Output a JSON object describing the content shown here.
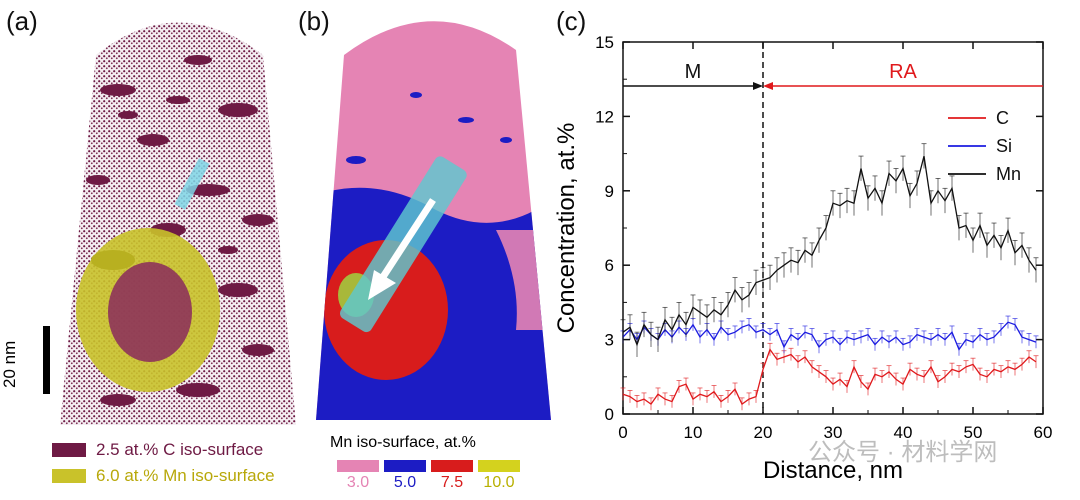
{
  "panels": {
    "a": {
      "label": "(a)"
    },
    "b": {
      "label": "(b)"
    },
    "c": {
      "label": "(c)"
    }
  },
  "scale_bar": {
    "label": "20 nm"
  },
  "legend_a": {
    "items": [
      {
        "text": "2.5 at.% C iso-surface",
        "color": "#6e1a44"
      },
      {
        "text": "6.0 at.% Mn iso-surface",
        "color": "#c9c22a"
      }
    ]
  },
  "legend_b": {
    "title": "Mn iso-surface, at.%",
    "items": [
      {
        "value": "3.0",
        "color": "#e584b4"
      },
      {
        "value": "5.0",
        "color": "#1c1cc4"
      },
      {
        "value": "7.5",
        "color": "#d81c1c"
      },
      {
        "value": "10.0",
        "color": "#d4d21e"
      }
    ]
  },
  "watermark": "公众号 · 材料学网",
  "chart_data": {
    "type": "line",
    "xlabel": "Distance, nm",
    "ylabel": "Concentration, at.%",
    "xlim": [
      0,
      60
    ],
    "ylim": [
      0,
      15
    ],
    "xticks": [
      0,
      10,
      20,
      30,
      40,
      50,
      60
    ],
    "yticks": [
      0,
      3,
      6,
      9,
      12,
      15
    ],
    "legend_position": "top-right",
    "interface_x": 20,
    "regions": [
      {
        "label": "M",
        "color": "#111111",
        "x_range": [
          0,
          20
        ]
      },
      {
        "label": "RA",
        "color": "#e0191c",
        "x_range": [
          20,
          60
        ]
      }
    ],
    "x": [
      0,
      1,
      2,
      3,
      4,
      5,
      6,
      7,
      8,
      9,
      10,
      11,
      12,
      13,
      14,
      15,
      16,
      17,
      18,
      19,
      20,
      21,
      22,
      23,
      24,
      25,
      26,
      27,
      28,
      29,
      30,
      31,
      32,
      33,
      34,
      35,
      36,
      37,
      38,
      39,
      40,
      41,
      42,
      43,
      44,
      45,
      46,
      47,
      48,
      49,
      50,
      51,
      52,
      53,
      54,
      55,
      56,
      57,
      58,
      59
    ],
    "series": [
      {
        "name": "C",
        "color": "#e0191c",
        "values": [
          0.8,
          0.7,
          0.5,
          0.6,
          0.4,
          0.8,
          0.6,
          0.5,
          1.1,
          1.2,
          0.6,
          0.8,
          0.7,
          0.9,
          0.5,
          0.7,
          1.0,
          0.4,
          0.6,
          0.7,
          1.8,
          2.6,
          2.2,
          2.3,
          2.4,
          2.1,
          2.3,
          1.9,
          1.7,
          1.5,
          1.2,
          1.4,
          1.1,
          1.9,
          1.3,
          1.0,
          1.6,
          1.5,
          1.7,
          1.4,
          1.2,
          1.8,
          1.6,
          1.5,
          1.9,
          1.3,
          1.5,
          1.8,
          1.7,
          1.9,
          2.0,
          1.6,
          1.5,
          1.8,
          1.7,
          1.9,
          1.8,
          2.0,
          2.3,
          2.1
        ]
      },
      {
        "name": "Si",
        "color": "#1c1ce0",
        "values": [
          3.1,
          3.4,
          3.0,
          3.5,
          3.2,
          3.0,
          3.4,
          3.1,
          3.5,
          3.2,
          3.6,
          3.1,
          3.4,
          3.0,
          3.5,
          3.2,
          3.3,
          3.5,
          3.6,
          3.3,
          3.4,
          3.2,
          3.4,
          2.7,
          3.2,
          3.0,
          3.3,
          3.2,
          2.7,
          3.0,
          3.1,
          2.8,
          3.1,
          3.0,
          3.1,
          3.2,
          2.8,
          3.1,
          2.9,
          3.1,
          2.8,
          2.9,
          3.2,
          3.1,
          3.0,
          3.2,
          3.0,
          3.3,
          2.6,
          3.0,
          2.9,
          3.2,
          3.0,
          3.1,
          3.4,
          3.7,
          3.6,
          3.1,
          3.0,
          2.9
        ]
      },
      {
        "name": "Mn",
        "color": "#111111",
        "values": [
          3.3,
          3.5,
          2.8,
          3.6,
          3.2,
          3.0,
          3.8,
          3.4,
          4.0,
          3.6,
          4.3,
          4.1,
          3.9,
          4.2,
          4.0,
          4.4,
          5.0,
          4.6,
          4.8,
          5.3,
          5.4,
          5.5,
          5.8,
          6.0,
          6.2,
          6.1,
          6.6,
          6.4,
          7.0,
          7.5,
          8.5,
          8.4,
          8.6,
          8.5,
          9.9,
          8.7,
          9.1,
          8.5,
          9.7,
          9.4,
          9.9,
          8.8,
          9.3,
          10.4,
          8.5,
          9.0,
          8.6,
          9.1,
          7.5,
          7.6,
          7.0,
          7.6,
          6.8,
          7.2,
          6.7,
          7.4,
          6.5,
          6.8,
          6.2,
          5.8
        ]
      }
    ]
  }
}
